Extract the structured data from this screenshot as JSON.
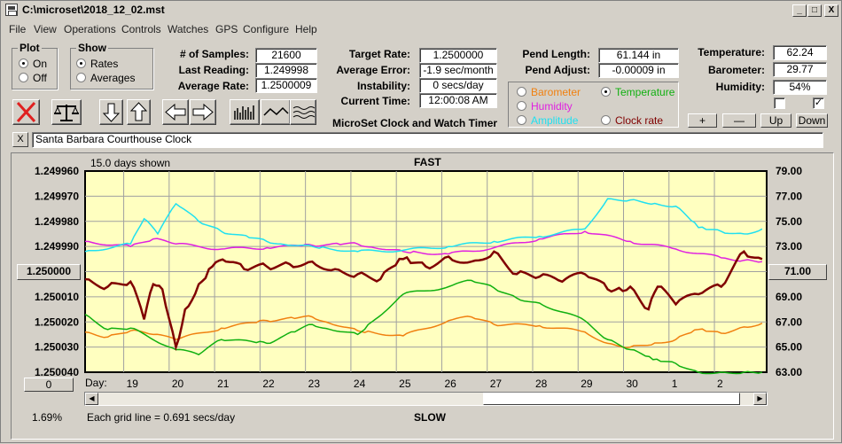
{
  "window": {
    "title": "C:\\microset\\2018_12_02.mst"
  },
  "window_buttons": {
    "minimize": "_",
    "maximize": "□",
    "close": "X"
  },
  "menu": [
    "File",
    "View",
    "Operations",
    "Controls",
    "Watches",
    "GPS",
    "Configure",
    "Help"
  ],
  "plot_group": {
    "title": "Plot",
    "on": "On",
    "off": "Off",
    "selected": "On"
  },
  "show_group": {
    "title": "Show",
    "rates": "Rates",
    "averages": "Averages",
    "selected": "Rates"
  },
  "stats": {
    "samples_label": "# of Samples:",
    "samples": "21600",
    "last_reading_label": "Last Reading:",
    "last_reading": "1.249998",
    "average_rate_label": "Average Rate:",
    "average_rate": "1.2500009"
  },
  "targets": {
    "target_rate_label": "Target Rate:",
    "target_rate": "1.2500000",
    "avg_error_label": "Average Error:",
    "avg_error": "-1.9 sec/month",
    "instability_label": "Instability:",
    "instability": "0 secs/day",
    "current_time_label": "Current Time:",
    "current_time": "12:00:08 AM"
  },
  "app_caption": "MicroSet Clock and Watch Timer",
  "pendulum": {
    "length_label": "Pend Length:",
    "length": "61.144 in",
    "adjust_label": "Pend Adjust:",
    "adjust": "-0.00009 in"
  },
  "right_axis_options": {
    "barometer": "Barometer",
    "temperature": "Temperature",
    "humidity": "Humidity",
    "amplitude": "Amplitude",
    "clock_rate": "Clock rate",
    "selected": "Temperature"
  },
  "environment": {
    "temperature_label": "Temperature:",
    "temperature": "62.24",
    "barometer_label": "Barometer:",
    "barometer": "29.77",
    "humidity_label": "Humidity:",
    "humidity": "54%",
    "check1": false,
    "check2": true
  },
  "scale_buttons": {
    "plus": "+",
    "minus": "—",
    "up": "Up",
    "down": "Down"
  },
  "description": {
    "close": "X",
    "text": "Santa Barbara Courthouse Clock"
  },
  "chart_header": {
    "days_shown": "15.0 days shown",
    "fast": "FAST",
    "slow": "SLOW"
  },
  "chart_footer": {
    "grid_note": "Each grid line = 0.691 secs/day",
    "percent": "1.69%",
    "day_label": "Day:",
    "center_left": "1.250000",
    "center_right": "71.00",
    "offset": "0"
  },
  "colors": {
    "plot_bg": "#ffffc0",
    "rate": "#800000",
    "humidity": "#e020e0",
    "amplitude": "#20e0f0",
    "temperature": "#10b010",
    "barometer": "#f08010"
  },
  "chart_data": {
    "type": "line",
    "x_ticks": [
      "19",
      "20",
      "21",
      "22",
      "23",
      "24",
      "25",
      "26",
      "27",
      "28",
      "29",
      "30",
      "1",
      "2"
    ],
    "left_ticks": [
      "1.249960",
      "1.249970",
      "1.249980",
      "1.249990",
      "1.250000",
      "1.250010",
      "1.250020",
      "1.250030",
      "1.250040"
    ],
    "right_ticks": [
      "79.00",
      "77.00",
      "75.00",
      "73.00",
      "71.00",
      "69.00",
      "67.00",
      "65.00",
      "63.00"
    ],
    "left_ylim": [
      1.24996,
      1.25004
    ],
    "right_ylim": [
      63,
      79
    ],
    "x_range_days": [
      0,
      15
    ],
    "grid": true,
    "series": [
      {
        "key": "rate",
        "axis": "left",
        "color": "#800000",
        "x": [
          0,
          0.5,
          1,
          1.3,
          1.5,
          1.7,
          2.0,
          2.2,
          2.5,
          2.8,
          3.1,
          3.5,
          4,
          4.5,
          5,
          5.5,
          6,
          6.5,
          7,
          7.5,
          8,
          8.5,
          9,
          9.5,
          10,
          10.5,
          11,
          11.5,
          12,
          12.4,
          12.6,
          13,
          13.5,
          14,
          14.5,
          14.9
        ],
        "y": [
          1.250003,
          1.250006,
          1.250004,
          1.250019,
          1.250005,
          1.250007,
          1.25003,
          1.250015,
          1.250005,
          1.249998,
          1.249996,
          1.249999,
          1.249998,
          1.249997,
          1.249996,
          1.249999,
          1.250001,
          1.250003,
          1.249995,
          1.249998,
          1.249994,
          1.249996,
          1.249992,
          1.250001,
          1.250002,
          1.250004,
          1.250001,
          1.250007,
          1.250006,
          1.250015,
          1.250006,
          1.250013,
          1.250009,
          1.250006,
          1.249992,
          1.249995
        ]
      },
      {
        "key": "humidity",
        "axis": "right",
        "color": "#e020e0",
        "x": [
          0,
          1,
          1.5,
          2,
          3,
          4,
          5,
          6,
          7,
          8,
          9,
          10,
          11,
          12,
          13,
          14,
          14.5,
          14.9
        ],
        "y": [
          73.4,
          73.0,
          73.6,
          73.2,
          72.8,
          72.9,
          73.1,
          73.2,
          72.6,
          72.4,
          72.9,
          73.6,
          74.2,
          73.4,
          72.8,
          72.1,
          71.9,
          71.8
        ]
      },
      {
        "key": "amplitude",
        "axis": "right",
        "color": "#20e0f0",
        "x": [
          0,
          1,
          1.3,
          1.6,
          2,
          2.5,
          3,
          4,
          5,
          6,
          7,
          8,
          9,
          10,
          11,
          11.5,
          12,
          13,
          13.5,
          14,
          14.5,
          14.9
        ],
        "y": [
          72.6,
          73.2,
          75.2,
          74.0,
          76.4,
          75.0,
          74.2,
          73.4,
          73.0,
          72.6,
          72.7,
          73.0,
          73.4,
          73.8,
          74.4,
          76.8,
          76.7,
          76.2,
          74.5,
          74.2,
          74.0,
          74.4
        ]
      },
      {
        "key": "temperature",
        "axis": "right",
        "color": "#10b010",
        "x": [
          0,
          0.5,
          1,
          2,
          2.5,
          3,
          4,
          5,
          6,
          7,
          8,
          8.5,
          9,
          9.5,
          10,
          11,
          11.5,
          12,
          12.5,
          13,
          13.5,
          14,
          14.5,
          14.9
        ],
        "y": [
          67.6,
          66.4,
          66.5,
          64.8,
          64.4,
          65.6,
          65.3,
          66.8,
          66.0,
          69.2,
          69.8,
          70.3,
          69.7,
          68.9,
          68.5,
          67.1,
          65.6,
          64.8,
          64.0,
          63.7,
          63.0,
          63.0,
          63.0,
          63.0
        ]
      },
      {
        "key": "barometer",
        "axis": "right",
        "color": "#f08010",
        "x": [
          0,
          0.5,
          1,
          1.5,
          2,
          3,
          4,
          5,
          6,
          7,
          8,
          8.5,
          9,
          10,
          11,
          11.5,
          12,
          13,
          13.5,
          14,
          14.5,
          14.9
        ],
        "y": [
          66.2,
          65.8,
          66.3,
          66.0,
          65.6,
          66.5,
          67.1,
          67.4,
          66.3,
          65.9,
          67.1,
          67.4,
          66.8,
          66.7,
          66.2,
          65.3,
          65.0,
          65.6,
          66.4,
          66.1,
          66.6,
          66.9
        ]
      }
    ]
  }
}
